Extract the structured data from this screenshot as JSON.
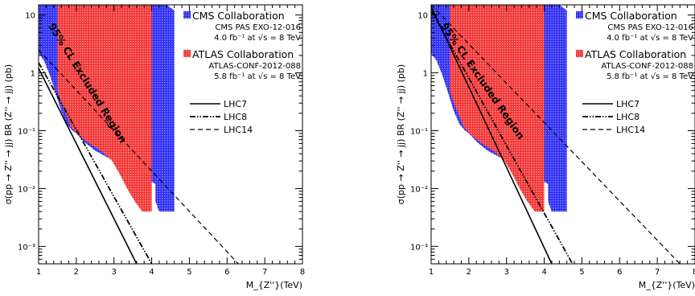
{
  "chart_data": [
    {
      "type": "line",
      "xlabel": "M_{Z''}(TeV)",
      "ylabel": "σ(pp → Z'' → jj) BR (Z'' → jj) (pb)",
      "xlim": [
        1,
        8
      ],
      "ylim": [
        0.0005,
        15
      ],
      "yscale": "log",
      "grid": false,
      "legend_position": "top-right",
      "x_ticks": [
        1,
        2,
        3,
        4,
        5,
        6,
        7,
        8
      ],
      "y_ticks": [
        {
          "value": 0.001,
          "label": "10⁻³"
        },
        {
          "value": 0.01,
          "label": "10⁻²"
        },
        {
          "value": 0.1,
          "label": "10⁻¹"
        },
        {
          "value": 1,
          "label": "1"
        },
        {
          "value": 10,
          "label": "10"
        }
      ],
      "exclusion_label": "95% CL Excluded Region",
      "exclusion_regions": [
        {
          "name": "CMS Collaboration",
          "lines": [
            "CMS PAS EXO-12-016",
            "4.0 fb⁻¹ at √s = 8 TeV"
          ],
          "color": "#3d3dff",
          "x": [
            1.0,
            1.0,
            4.4,
            4.6,
            4.6,
            4.2,
            4.1,
            4.1,
            3.5,
            3.0,
            2.5,
            2.2,
            2.0,
            1.9,
            1.75,
            1.6,
            1.45,
            1.3,
            1.15,
            1.0
          ],
          "y": [
            15,
            15,
            15,
            12,
            0.004,
            0.004,
            0.006,
            0.012,
            0.02,
            0.03,
            0.045,
            0.065,
            0.09,
            0.1,
            0.13,
            0.22,
            0.45,
            0.9,
            1.6,
            2.2
          ]
        },
        {
          "name": "ATLAS Collaboration",
          "lines": [
            "ATLAS-CONF-2012-088",
            "5.8 fb⁻¹ at √s = 8 TeV"
          ],
          "color": "#ff3b3b",
          "x": [
            1.5,
            1.5,
            4.0,
            4.0,
            3.75,
            3.55,
            3.35,
            3.15,
            2.95,
            2.65,
            2.35,
            2.1,
            1.95,
            1.85,
            1.75,
            1.6,
            1.5
          ],
          "y": [
            15,
            15,
            15,
            0.004,
            0.004,
            0.006,
            0.01,
            0.018,
            0.03,
            0.045,
            0.06,
            0.08,
            0.1,
            0.12,
            0.18,
            0.3,
            0.5
          ]
        }
      ],
      "series": [
        {
          "name": "LHC7",
          "style": "solid",
          "x": [
            1.0,
            3.6
          ],
          "y": [
            1.2,
            0.0005
          ]
        },
        {
          "name": "LHC8",
          "style": "dash-dot",
          "x": [
            1.0,
            4.0
          ],
          "y": [
            1.5,
            0.0005
          ]
        },
        {
          "name": "LHC14",
          "style": "dashed",
          "x": [
            1.0,
            6.3
          ],
          "y": [
            2.5,
            0.0005
          ]
        }
      ]
    },
    {
      "type": "line",
      "xlabel": "M_{Z''}(TeV)",
      "ylabel": "σ(pp → Z'' → jj) BR (Z'' → jj) (pb)",
      "xlim": [
        1,
        8
      ],
      "ylim": [
        0.0005,
        15
      ],
      "yscale": "log",
      "grid": false,
      "legend_position": "top-right",
      "x_ticks": [
        1,
        2,
        3,
        4,
        5,
        6,
        7,
        8
      ],
      "y_ticks": [
        {
          "value": 0.001,
          "label": "10⁻³"
        },
        {
          "value": 0.01,
          "label": "10⁻²"
        },
        {
          "value": 0.1,
          "label": "10⁻¹"
        },
        {
          "value": 1,
          "label": "1"
        },
        {
          "value": 10,
          "label": "10"
        }
      ],
      "exclusion_label": "95% CL Excluded Region",
      "exclusion_regions": [
        {
          "name": "CMS Collaboration",
          "lines": [
            "CMS PAS EXO-12-016",
            "4.0 fb⁻¹ at √s = 8 TeV"
          ],
          "color": "#3d3dff",
          "x": [
            1.0,
            1.0,
            4.4,
            4.6,
            4.6,
            4.2,
            4.1,
            4.1,
            3.5,
            3.0,
            2.5,
            2.2,
            2.0,
            1.9,
            1.75,
            1.6,
            1.45,
            1.3,
            1.15,
            1.0
          ],
          "y": [
            15,
            15,
            15,
            12,
            0.004,
            0.004,
            0.006,
            0.012,
            0.02,
            0.03,
            0.045,
            0.065,
            0.09,
            0.1,
            0.13,
            0.22,
            0.45,
            0.9,
            1.6,
            2.2
          ]
        },
        {
          "name": "ATLAS Collaboration",
          "lines": [
            "ATLAS-CONF-2012-088",
            "5.8 fb⁻¹ at √s = 8 TeV"
          ],
          "color": "#ff3b3b",
          "x": [
            1.5,
            1.5,
            4.0,
            4.0,
            3.75,
            3.55,
            3.35,
            3.15,
            2.95,
            2.65,
            2.35,
            2.1,
            1.95,
            1.85,
            1.75,
            1.6,
            1.5
          ],
          "y": [
            15,
            15,
            15,
            0.004,
            0.004,
            0.006,
            0.01,
            0.018,
            0.03,
            0.045,
            0.06,
            0.08,
            0.1,
            0.12,
            0.18,
            0.3,
            0.5
          ]
        }
      ],
      "series": [
        {
          "name": "LHC7",
          "style": "solid",
          "x": [
            1.0,
            4.2
          ],
          "y": [
            14,
            0.0005
          ]
        },
        {
          "name": "LHC8",
          "style": "dash-dot",
          "x": [
            1.0,
            4.75
          ],
          "y": [
            12,
            0.0005
          ]
        },
        {
          "name": "LHC14",
          "style": "dashed",
          "x": [
            1.0,
            7.6
          ],
          "y": [
            15,
            0.0005
          ]
        }
      ]
    }
  ]
}
